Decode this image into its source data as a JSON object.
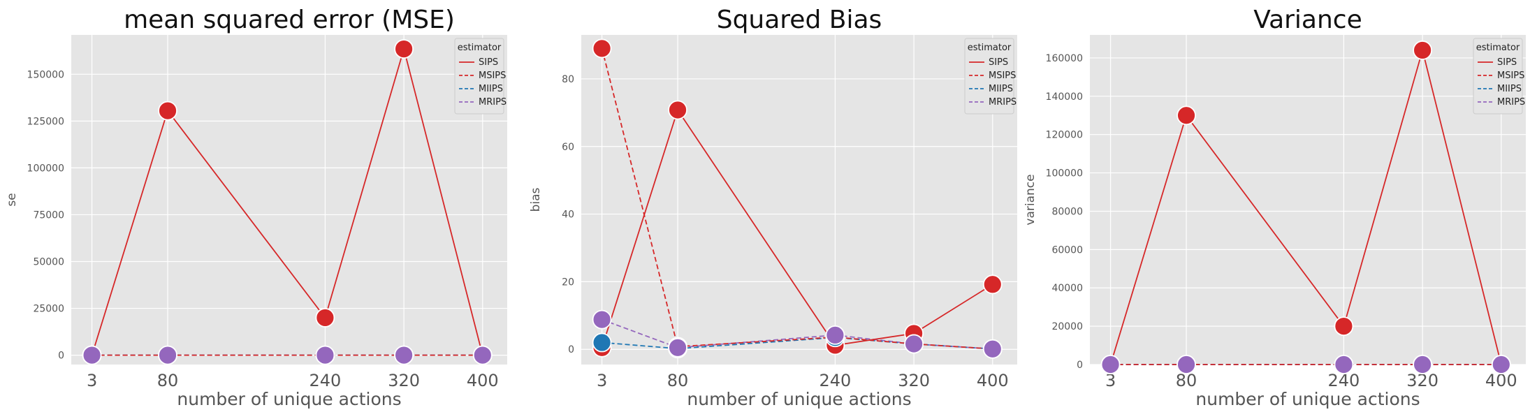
{
  "colors": {
    "SIPS": "#d62728",
    "MSIPS": "#d62728",
    "MIIPS": "#1f77b4",
    "MRIPS": "#9467bd",
    "panel_bg": "#e5e5e5",
    "grid": "#ffffff",
    "tick_text": "#555555"
  },
  "legend": {
    "title": "estimator",
    "entries": [
      "SIPS",
      "MSIPS",
      "MIIPS",
      "MRIPS"
    ],
    "styles": [
      "solid",
      "dashed",
      "dashed",
      "dashed"
    ]
  },
  "chart_data": [
    {
      "type": "line",
      "title": "mean squared error (MSE)",
      "xlabel": "number of unique actions",
      "ylabel": "se",
      "x": [
        3,
        80,
        240,
        320,
        400
      ],
      "xticks": [
        "3",
        "80",
        "240",
        "320",
        "400"
      ],
      "xlim": [
        -18,
        425
      ],
      "ylim": [
        -5000,
        171000
      ],
      "yticks": [
        0,
        25000,
        50000,
        75000,
        100000,
        125000,
        150000
      ],
      "ytick_labels": [
        "0",
        "25000",
        "50000",
        "75000",
        "100000",
        "125000",
        "150000"
      ],
      "grid": true,
      "legend_position": "top-right",
      "series": [
        {
          "name": "SIPS",
          "values": [
            0,
            130500,
            20000,
            163500,
            0
          ]
        },
        {
          "name": "MSIPS",
          "values": [
            0,
            0,
            0,
            0,
            0
          ]
        },
        {
          "name": "MIIPS",
          "values": [
            0,
            0,
            0,
            0,
            0
          ]
        },
        {
          "name": "MRIPS",
          "values": [
            0,
            0,
            0,
            0,
            0
          ]
        }
      ]
    },
    {
      "type": "line",
      "title": "Squared Bias",
      "xlabel": "number of unique actions",
      "ylabel": "bias",
      "x": [
        3,
        80,
        240,
        320,
        400
      ],
      "xticks": [
        "3",
        "80",
        "240",
        "320",
        "400"
      ],
      "xlim": [
        -18,
        425
      ],
      "ylim": [
        -4.5,
        93
      ],
      "yticks": [
        0,
        20,
        40,
        60,
        80
      ],
      "ytick_labels": [
        "0",
        "20",
        "40",
        "60",
        "80"
      ],
      "grid": true,
      "legend_position": "top-right",
      "series": [
        {
          "name": "SIPS",
          "values": [
            0.5,
            70.8,
            1.2,
            4.7,
            19.2
          ]
        },
        {
          "name": "MSIPS",
          "values": [
            89,
            0.8,
            3.6,
            1.6,
            0.1
          ]
        },
        {
          "name": "MIIPS",
          "values": [
            2,
            0.2,
            3.5,
            1.6,
            0.1
          ]
        },
        {
          "name": "MRIPS",
          "values": [
            8.8,
            0.5,
            4.2,
            1.6,
            0.1
          ]
        }
      ]
    },
    {
      "type": "line",
      "title": "Variance",
      "xlabel": "number of unique actions",
      "ylabel": "variance",
      "x": [
        3,
        80,
        240,
        320,
        400
      ],
      "xticks": [
        "3",
        "80",
        "240",
        "320",
        "400"
      ],
      "xlim": [
        -18,
        425
      ],
      "ylim": [
        0,
        172000
      ],
      "yticks": [
        0,
        20000,
        40000,
        60000,
        80000,
        100000,
        120000,
        140000,
        160000
      ],
      "ytick_labels": [
        "0",
        "20000",
        "40000",
        "60000",
        "80000",
        "100000",
        "120000",
        "140000",
        "160000"
      ],
      "grid": true,
      "legend_position": "top-right",
      "series": [
        {
          "name": "SIPS",
          "values": [
            0,
            130000,
            20000,
            164000,
            0
          ]
        },
        {
          "name": "MSIPS",
          "values": [
            0,
            0,
            0,
            0,
            0
          ]
        },
        {
          "name": "MIIPS",
          "values": [
            0,
            0,
            0,
            0,
            0
          ]
        },
        {
          "name": "MRIPS",
          "values": [
            0,
            0,
            0,
            0,
            0
          ]
        }
      ]
    }
  ]
}
